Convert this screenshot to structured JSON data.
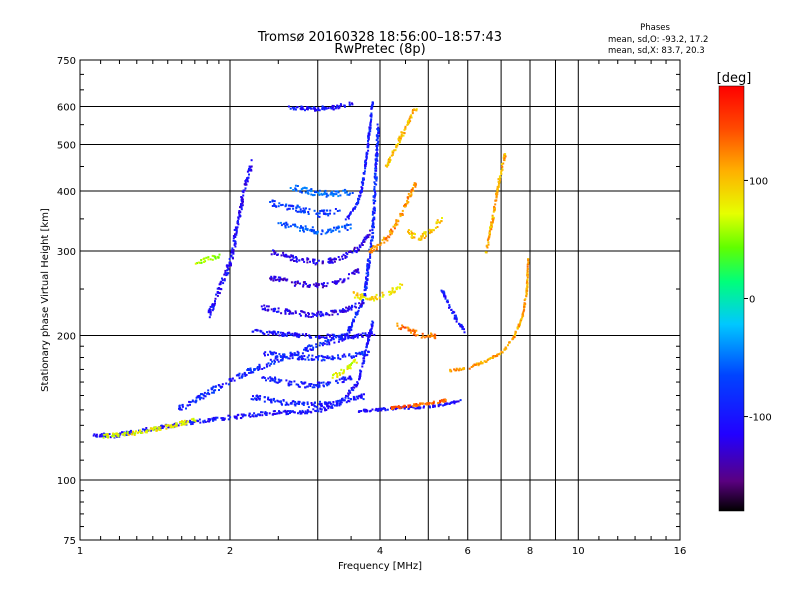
{
  "chart_data": {
    "type": "scatter",
    "title": "Tromsø 20160328 18:56:00–18:57:43",
    "subtitle": "RwPretec (8p)",
    "xlabel": "Frequency [MHz]",
    "ylabel": "Stationary phase Virtual Height [km]",
    "xscale": "log",
    "yscale": "log",
    "xlim": [
      1,
      16
    ],
    "ylim": [
      75,
      750
    ],
    "xticks": [
      1,
      2,
      4,
      6,
      8,
      10,
      16
    ],
    "xtick_labels": [
      "1",
      "2",
      "4",
      "6",
      "8",
      "10",
      "16"
    ],
    "xgrid": [
      2,
      3,
      4,
      5,
      6,
      7,
      8,
      9,
      10
    ],
    "yticks": [
      75,
      100,
      200,
      300,
      400,
      500,
      600,
      750
    ],
    "ytick_labels": [
      "75",
      "100",
      "200",
      "300",
      "400",
      "500",
      "600",
      "750"
    ],
    "grid": true,
    "stats": {
      "title": "Phases",
      "line1": "mean, sd,O: -93.2, 17.2",
      "line2": "mean, sd,X:  83.7, 20.3"
    },
    "colorbar": {
      "label": "[deg]",
      "range": [
        -180,
        180
      ],
      "ticks": [
        100,
        0,
        -100
      ],
      "tick_labels": [
        "100",
        "0",
        "-100"
      ]
    },
    "traces": [
      {
        "f": [
          1.05,
          1.15,
          1.3,
          1.5,
          1.7,
          1.9,
          2.05,
          2.3,
          2.6,
          3.0,
          3.3,
          3.6,
          3.85
        ],
        "h": [
          125,
          124,
          127,
          130,
          133,
          135,
          136,
          138,
          139,
          140,
          145,
          160,
          215
        ],
        "phase": -105,
        "spread": 0.02
      },
      {
        "f": [
          1.1,
          1.3,
          1.5,
          1.7
        ],
        "h": [
          124,
          126,
          130,
          134
        ],
        "phase": 80,
        "spread": 0.02
      },
      {
        "f": [
          1.55,
          1.75,
          1.95,
          2.2,
          2.5,
          2.9,
          3.4,
          3.7,
          3.85,
          3.95
        ],
        "h": [
          140,
          150,
          160,
          170,
          180,
          190,
          200,
          240,
          330,
          550
        ],
        "phase": -95,
        "spread": 0.03
      },
      {
        "f": [
          1.8,
          1.9,
          2.0,
          2.05,
          2.1,
          2.15,
          2.2
        ],
        "h": [
          220,
          250,
          290,
          330,
          380,
          420,
          460
        ],
        "phase": -110,
        "spread": 0.04
      },
      {
        "f": [
          3.4,
          3.55,
          3.65,
          3.75,
          3.85
        ],
        "h": [
          350,
          370,
          400,
          480,
          620
        ],
        "phase": -100,
        "spread": 0.02
      },
      {
        "f": [
          2.4,
          2.7,
          3.0,
          3.3,
          3.6,
          3.8
        ],
        "h": [
          300,
          290,
          285,
          290,
          305,
          330
        ],
        "phase": -120,
        "spread": 0.025
      },
      {
        "f": [
          2.4,
          2.7,
          3.0,
          3.3,
          3.6
        ],
        "h": [
          265,
          258,
          255,
          260,
          275
        ],
        "phase": -125,
        "spread": 0.025
      },
      {
        "f": [
          2.3,
          2.6,
          2.9,
          3.3,
          3.7
        ],
        "h": [
          230,
          225,
          222,
          225,
          235
        ],
        "phase": -115,
        "spread": 0.025
      },
      {
        "f": [
          2.2,
          2.6,
          3.0,
          3.5,
          3.9
        ],
        "h": [
          205,
          202,
          200,
          200,
          203
        ],
        "phase": -105,
        "spread": 0.02
      },
      {
        "f": [
          2.3,
          2.6,
          3.0,
          3.4,
          3.8
        ],
        "h": [
          185,
          182,
          180,
          182,
          185
        ],
        "phase": -95,
        "spread": 0.025
      },
      {
        "f": [
          2.3,
          2.6,
          2.9,
          3.2,
          3.5
        ],
        "h": [
          165,
          160,
          158,
          160,
          165
        ],
        "phase": -100,
        "spread": 0.025
      },
      {
        "f": [
          2.2,
          2.5,
          2.9,
          3.3,
          3.7
        ],
        "h": [
          150,
          146,
          144,
          146,
          150
        ],
        "phase": -100,
        "spread": 0.025
      },
      {
        "f": [
          2.4,
          2.7,
          3.0,
          3.3
        ],
        "h": [
          380,
          370,
          360,
          365
        ],
        "phase": -80,
        "spread": 0.03
      },
      {
        "f": [
          2.5,
          2.8,
          3.1,
          3.5
        ],
        "h": [
          345,
          335,
          330,
          340
        ],
        "phase": -70,
        "spread": 0.03
      },
      {
        "f": [
          2.6,
          2.9,
          3.2,
          3.5
        ],
        "h": [
          410,
          400,
          395,
          400
        ],
        "phase": -60,
        "spread": 0.03
      },
      {
        "f": [
          2.6,
          2.9,
          3.2,
          3.5
        ],
        "h": [
          600,
          595,
          600,
          610
        ],
        "phase": -105,
        "spread": 0.02
      },
      {
        "f": [
          3.6,
          4.0,
          4.5,
          5.0,
          5.5,
          5.8
        ],
        "h": [
          140,
          141,
          142,
          143,
          145,
          147
        ],
        "phase": -110,
        "spread": 0.012
      },
      {
        "f": [
          4.2,
          4.5,
          4.9,
          5.2,
          5.5
        ],
        "h": [
          142,
          143,
          145,
          146,
          148
        ],
        "phase": 140,
        "spread": 0.012
      },
      {
        "f": [
          3.8,
          4.1,
          4.4,
          4.7
        ],
        "h": [
          300,
          320,
          360,
          420
        ],
        "phase": 120,
        "spread": 0.03
      },
      {
        "f": [
          4.1,
          4.3,
          4.5,
          4.7
        ],
        "h": [
          450,
          500,
          550,
          600
        ],
        "phase": 105,
        "spread": 0.025
      },
      {
        "f": [
          3.5,
          3.8,
          4.1,
          4.4
        ],
        "h": [
          245,
          240,
          245,
          255
        ],
        "phase": 90,
        "spread": 0.03
      },
      {
        "f": [
          4.5,
          4.8,
          5.0,
          5.3
        ],
        "h": [
          330,
          320,
          330,
          350
        ],
        "phase": 100,
        "spread": 0.03
      },
      {
        "f": [
          4.3,
          4.6,
          4.9,
          5.2
        ],
        "h": [
          210,
          205,
          200,
          200
        ],
        "phase": 130,
        "spread": 0.03
      },
      {
        "f": [
          5.3,
          5.5,
          5.7,
          5.9
        ],
        "h": [
          250,
          230,
          215,
          205
        ],
        "phase": -100,
        "spread": 0.02
      },
      {
        "f": [
          5.5,
          6.0,
          6.5,
          7.0,
          7.4,
          7.7,
          7.85,
          7.9
        ],
        "h": [
          170,
          172,
          178,
          185,
          200,
          220,
          250,
          290
        ],
        "phase": 115,
        "spread": 0.012
      },
      {
        "f": [
          3.2,
          3.4,
          3.6
        ],
        "h": [
          165,
          170,
          180
        ],
        "phase": 75,
        "spread": 0.03
      },
      {
        "f": [
          1.7,
          1.8,
          1.9
        ],
        "h": [
          285,
          290,
          295
        ],
        "phase": 60,
        "spread": 0.02
      },
      {
        "f": [
          6.5,
          6.7,
          6.9,
          7.1
        ],
        "h": [
          300,
          350,
          420,
          480
        ],
        "phase": 110,
        "spread": 0.02
      }
    ]
  }
}
